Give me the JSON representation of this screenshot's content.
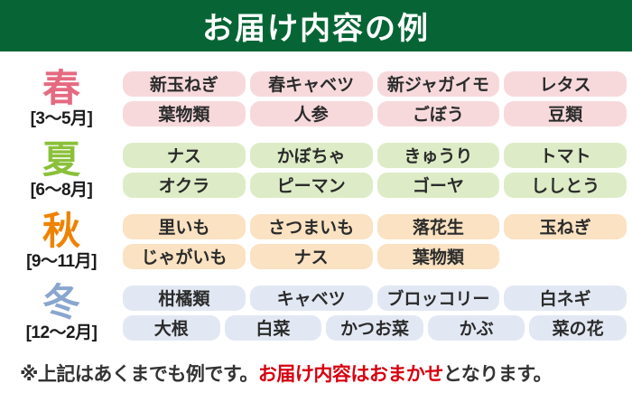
{
  "header": {
    "title": "お届け内容の例",
    "bg_color": "#076535"
  },
  "seasons": [
    {
      "name": "春",
      "period": "[3〜5月]",
      "label_color": "#e56a80",
      "chip_color": "#f7d9dc",
      "rows": [
        [
          "新玉ねぎ",
          "春キャベツ",
          "新ジャガイモ",
          "レタス"
        ],
        [
          "葉物類",
          "人参",
          "ごぼう",
          "豆類"
        ]
      ]
    },
    {
      "name": "夏",
      "period": "[6〜8月]",
      "label_color": "#8bc03a",
      "chip_color": "#ddecc6",
      "rows": [
        [
          "ナス",
          "かぼちゃ",
          "きゅうり",
          "トマト"
        ],
        [
          "オクラ",
          "ピーマン",
          "ゴーヤ",
          "ししとう"
        ]
      ]
    },
    {
      "name": "秋",
      "period": "[9〜11月]",
      "label_color": "#ef8200",
      "chip_color": "#fae2c2",
      "rows": [
        [
          "里いも",
          "さつまいも",
          "落花生",
          "玉ねぎ"
        ],
        [
          "じゃがいも",
          "ナス",
          "葉物類"
        ]
      ]
    },
    {
      "name": "冬",
      "period": "[12〜2月]",
      "label_color": "#8aa6d0",
      "chip_color": "#e2e8f3",
      "rows": [
        [
          "柑橘類",
          "キャベツ",
          "ブロッコリー",
          "白ネギ"
        ],
        [
          "大根",
          "白菜",
          "かつお菜",
          "かぶ",
          "菜の花"
        ]
      ]
    }
  ],
  "footer": {
    "prefix": "※上記はあくまでも例です。",
    "highlight": "お届け内容はおまかせ",
    "suffix": "となります。",
    "highlight_color": "#d7000f"
  }
}
